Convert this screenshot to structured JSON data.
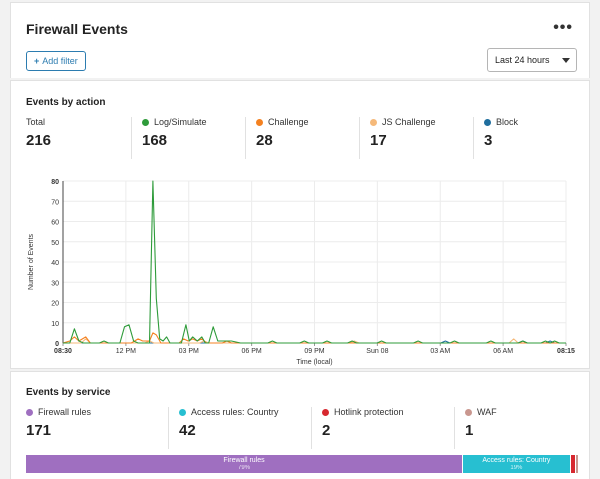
{
  "header": {
    "title": "Firewall Events",
    "more_label": "•••",
    "add_filter_label": "Add filter",
    "time_range": "Last 24 hours"
  },
  "events_by_action": {
    "title": "Events by action",
    "stats": [
      {
        "label": "Total",
        "value": "216",
        "color": ""
      },
      {
        "label": "Log/Simulate",
        "value": "168",
        "color": "#2e9b3a"
      },
      {
        "label": "Challenge",
        "value": "28",
        "color": "#f48120"
      },
      {
        "label": "JS Challenge",
        "value": "17",
        "color": "#f5b97a"
      },
      {
        "label": "Block",
        "value": "3",
        "color": "#1f6e9e"
      }
    ]
  },
  "chart_data": {
    "type": "line",
    "xlabel": "Time (local)",
    "ylabel": "Number of Events",
    "ylim": [
      0,
      80
    ],
    "y_ticks": [
      "0",
      "10",
      "20",
      "30",
      "40",
      "50",
      "60",
      "70",
      "80"
    ],
    "x_ticks": [
      "08:30",
      "12 PM",
      "03 PM",
      "06 PM",
      "09 PM",
      "Sun 08",
      "03 AM",
      "06 AM",
      "08:15"
    ],
    "grid": true,
    "series": [
      {
        "name": "Log/Simulate",
        "color": "#2e9b3a",
        "points": [
          [
            0,
            0
          ],
          [
            3,
            0
          ],
          [
            5,
            7
          ],
          [
            7,
            1
          ],
          [
            9,
            0
          ],
          [
            16,
            0
          ],
          [
            18,
            1
          ],
          [
            20,
            0
          ],
          [
            25,
            0
          ],
          [
            27,
            8
          ],
          [
            29,
            9
          ],
          [
            31,
            1
          ],
          [
            33,
            0
          ],
          [
            38,
            0
          ],
          [
            39.5,
            80
          ],
          [
            41,
            22
          ],
          [
            42.5,
            2
          ],
          [
            44,
            1
          ],
          [
            45.5,
            3
          ],
          [
            47,
            0
          ],
          [
            52,
            0
          ],
          [
            54,
            9
          ],
          [
            55.5,
            1
          ],
          [
            57,
            3
          ],
          [
            59,
            1
          ],
          [
            61,
            3
          ],
          [
            62.5,
            0
          ],
          [
            64,
            0
          ],
          [
            66,
            8
          ],
          [
            68,
            1
          ],
          [
            70,
            1
          ],
          [
            74,
            1
          ],
          [
            78,
            0
          ],
          [
            90,
            0
          ],
          [
            92,
            1
          ],
          [
            94,
            0
          ],
          [
            104,
            0
          ],
          [
            106,
            1
          ],
          [
            108,
            0
          ],
          [
            114,
            0
          ],
          [
            116,
            1
          ],
          [
            118,
            0
          ],
          [
            125,
            0
          ],
          [
            127,
            1
          ],
          [
            129,
            0
          ],
          [
            138,
            0
          ],
          [
            140,
            1
          ],
          [
            142,
            0
          ],
          [
            154,
            0
          ],
          [
            156,
            1
          ],
          [
            158,
            0
          ],
          [
            170,
            0
          ],
          [
            172,
            1
          ],
          [
            174,
            0
          ],
          [
            186,
            0
          ],
          [
            188,
            1
          ],
          [
            190,
            0
          ],
          [
            200,
            0
          ],
          [
            202,
            1
          ],
          [
            204,
            0
          ],
          [
            210,
            0
          ],
          [
            212,
            1
          ],
          [
            214,
            0
          ],
          [
            216,
            1
          ],
          [
            218,
            0
          ],
          [
            221,
            0
          ]
        ]
      },
      {
        "name": "Challenge",
        "color": "#f48120",
        "points": [
          [
            0,
            0
          ],
          [
            3,
            1
          ],
          [
            5,
            3
          ],
          [
            7,
            1
          ],
          [
            10,
            3
          ],
          [
            12,
            0
          ],
          [
            30,
            0
          ],
          [
            33,
            2
          ],
          [
            35,
            1
          ],
          [
            38,
            1
          ],
          [
            39.5,
            5
          ],
          [
            41,
            4
          ],
          [
            43,
            0
          ],
          [
            51,
            0
          ],
          [
            53,
            2
          ],
          [
            55,
            1
          ],
          [
            57,
            2
          ],
          [
            59,
            1
          ],
          [
            61,
            2
          ],
          [
            63,
            0
          ],
          [
            70,
            0
          ],
          [
            72,
            1
          ],
          [
            74,
            0
          ],
          [
            221,
            0
          ]
        ]
      },
      {
        "name": "JS Challenge",
        "color": "#f5b97a",
        "points": [
          [
            0,
            0
          ],
          [
            8,
            0
          ],
          [
            10,
            2
          ],
          [
            12,
            0
          ],
          [
            36,
            0
          ],
          [
            38,
            1
          ],
          [
            40,
            0
          ],
          [
            60,
            0
          ],
          [
            62,
            1
          ],
          [
            64,
            0
          ],
          [
            126,
            0
          ],
          [
            128,
            1
          ],
          [
            130,
            0
          ],
          [
            196,
            0
          ],
          [
            198,
            2
          ],
          [
            200,
            0
          ],
          [
            221,
            0
          ]
        ]
      },
      {
        "name": "Block",
        "color": "#1f6e9e",
        "points": [
          [
            0,
            0
          ],
          [
            166,
            0
          ],
          [
            168,
            1
          ],
          [
            170,
            0
          ],
          [
            200,
            0
          ],
          [
            202,
            1
          ],
          [
            204,
            0
          ],
          [
            212,
            0
          ],
          [
            214,
            1
          ],
          [
            216,
            0
          ],
          [
            221,
            0
          ]
        ]
      }
    ]
  },
  "events_by_service": {
    "title": "Events by service",
    "stats": [
      {
        "label": "Firewall rules",
        "value": "171",
        "color": "#9f6fc0"
      },
      {
        "label": "Access rules: Country",
        "value": "42",
        "color": "#27bfd1"
      },
      {
        "label": "Hotlink protection",
        "value": "2",
        "color": "#d7282f"
      },
      {
        "label": "WAF",
        "value": "1",
        "color": "#c9978f"
      }
    ],
    "bar": [
      {
        "label": "Firewall rules",
        "pct": "79%",
        "share": 0.79,
        "color": "#9f6fc0"
      },
      {
        "label": "Access rules: Country",
        "pct": "19%",
        "share": 0.195,
        "color": "#27bfd1"
      },
      {
        "label": "",
        "pct": "",
        "share": 0.01,
        "color": "#d7282f"
      },
      {
        "label": "",
        "pct": "",
        "share": 0.005,
        "color": "#c9978f"
      }
    ]
  }
}
